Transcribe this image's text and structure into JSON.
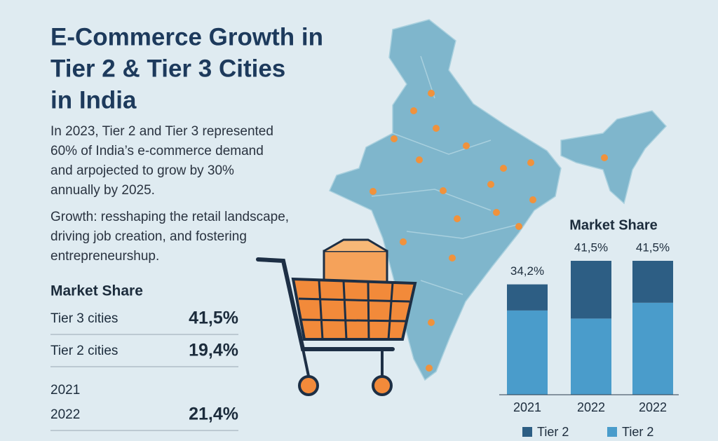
{
  "header": {
    "title_lines": [
      "E-Commerce Growth in",
      "Tier 2 & Tier 3 Cities",
      "in India"
    ]
  },
  "intro": {
    "lines": [
      "In 2023, Tier 2 and Tier 3 represented",
      "60% of India’s e-commerce demand",
      "and arpojected to grow by 30%",
      "annually by 2025."
    ]
  },
  "growth": {
    "lines": [
      "Growth: resshaping the retail landscape,",
      "driving job creation, and fostering",
      "entrepreneurshup."
    ]
  },
  "table": {
    "title": "Market Share",
    "rows": [
      [
        "Tier 3 cities",
        "41,5%"
      ],
      [
        "Tier 2 cities",
        "19,4%"
      ],
      [
        "2021"
      ],
      [
        "2022",
        "21,4%"
      ]
    ]
  },
  "chart_data": {
    "type": "stacked-bar",
    "title": "Market Share",
    "categories": [
      "2021",
      "2022",
      "2022"
    ],
    "series": [
      {
        "name": "Tier 2",
        "color": "#4a9ccb",
        "values": [
          26.1,
          23.6,
          28.5
        ]
      },
      {
        "name": "Tier 2",
        "color": "#2d5e84",
        "values": [
          8.1,
          17.9,
          13.0
        ]
      }
    ],
    "totals": [
      {
        "value": 34.2,
        "label": "34,2%"
      },
      {
        "value": 41.5,
        "label": "41,5%"
      },
      {
        "value": 41.5,
        "label": "41,5%"
      }
    ],
    "legend": "bottom"
  }
}
